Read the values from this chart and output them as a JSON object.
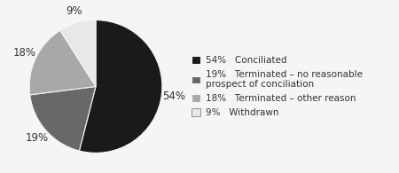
{
  "slices": [
    54,
    19,
    18,
    9
  ],
  "colors": [
    "#1a1a1a",
    "#686868",
    "#a8a8a8",
    "#e8e8e8"
  ],
  "labels": [
    "54%",
    "19%",
    "18%",
    "9%"
  ],
  "legend_pct": [
    "54%",
    "19%",
    "18%",
    "9%"
  ],
  "legend_labels": [
    "Conciliated",
    "Terminated – no reasonable\nprospect of conciliation",
    "Terminated – other reason",
    "Withdrawn"
  ],
  "startangle": 90,
  "background_color": "#f5f5f5",
  "label_fontsize": 8.5,
  "legend_fontsize": 7.5
}
